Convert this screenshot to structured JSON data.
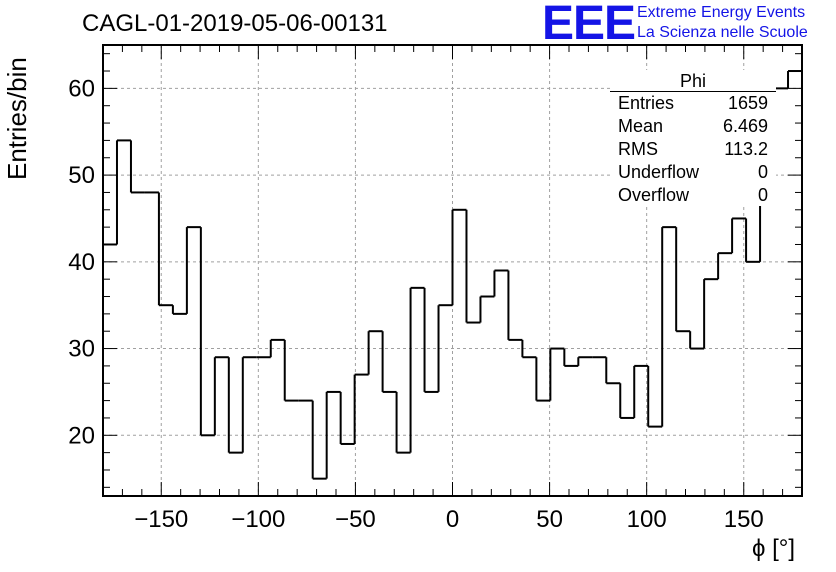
{
  "title": "CAGL-01-2019-05-06-00131",
  "logo": {
    "text": "EEE",
    "line1": "Extreme Energy Events",
    "line2": "La Scienza nelle Scuole",
    "color": "#1414e6"
  },
  "stats_box": {
    "title": "Phi",
    "rows": [
      {
        "key": "Entries",
        "value": "1659"
      },
      {
        "key": "Mean",
        "value": "6.469"
      },
      {
        "key": "RMS",
        "value": "113.2"
      },
      {
        "key": "Underflow",
        "value": "0"
      },
      {
        "key": "Overflow",
        "value": "0"
      }
    ]
  },
  "chart_data": {
    "type": "bar",
    "style": "step-histogram",
    "title": "CAGL-01-2019-05-06-00131",
    "xlabel": "ϕ [°]",
    "ylabel": "Entries/bin",
    "xlim": [
      -180,
      180
    ],
    "ylim": [
      13,
      65
    ],
    "bin_width": 7.2,
    "x_ticks": [
      -150,
      -100,
      -50,
      0,
      50,
      100,
      150
    ],
    "y_ticks": [
      20,
      30,
      40,
      50,
      60
    ],
    "grid": true,
    "values": [
      42,
      54,
      48,
      48,
      35,
      34,
      44,
      20,
      29,
      18,
      29,
      29,
      31,
      24,
      24,
      15,
      25,
      19,
      27,
      32,
      25,
      18,
      37,
      25,
      35,
      46,
      33,
      36,
      39,
      31,
      29,
      24,
      30,
      28,
      29,
      29,
      26,
      22,
      28,
      21,
      44,
      32,
      30,
      38,
      41,
      45,
      40,
      49,
      60,
      62
    ]
  }
}
